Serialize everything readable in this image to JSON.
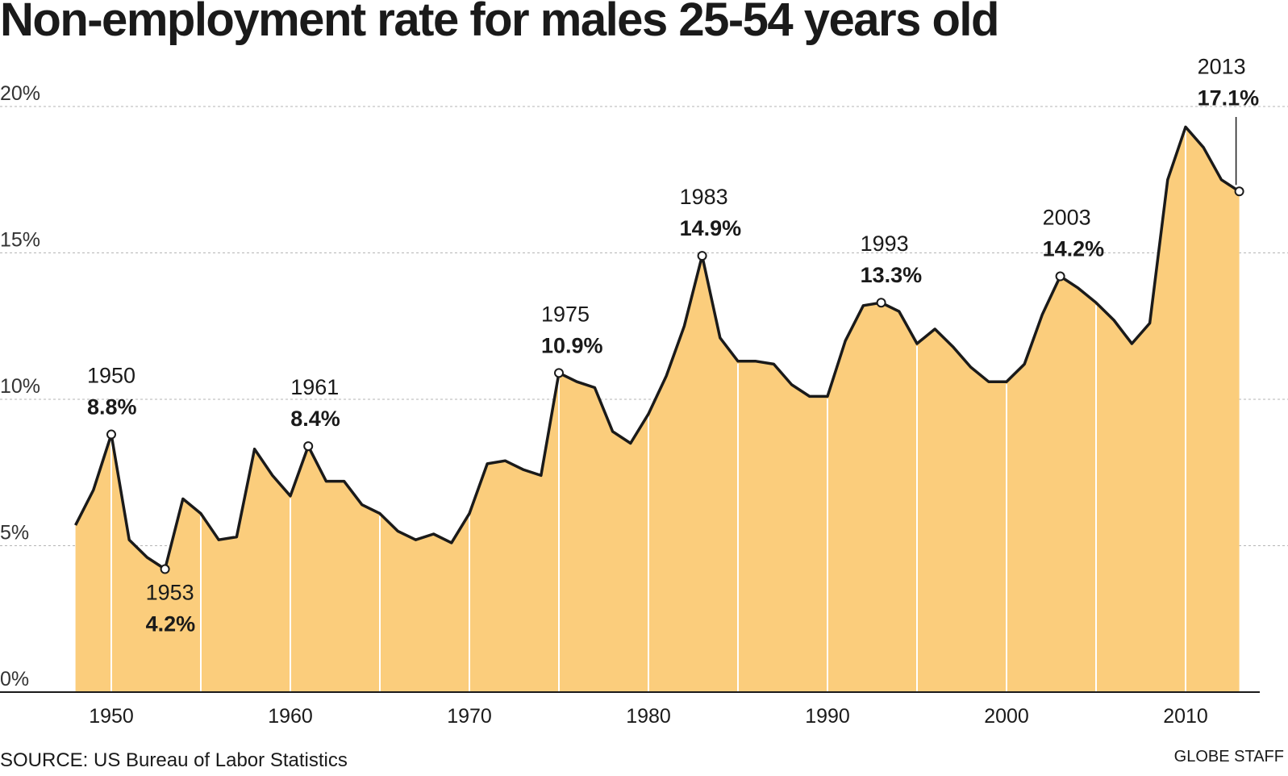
{
  "chart_data": {
    "type": "area",
    "title": "Non-employment rate for males 25-54 years old",
    "xlabel": "",
    "ylabel": "",
    "ylim": [
      0,
      20
    ],
    "y_ticks": [
      {
        "value": 0,
        "label": "0%"
      },
      {
        "value": 5,
        "label": "5%"
      },
      {
        "value": 10,
        "label": "10%"
      },
      {
        "value": 15,
        "label": "15%"
      },
      {
        "value": 20,
        "label": "20%"
      }
    ],
    "x_ticks": [
      {
        "value": 1950,
        "label": "1950"
      },
      {
        "value": 1960,
        "label": "1960"
      },
      {
        "value": 1970,
        "label": "1970"
      },
      {
        "value": 1980,
        "label": "1980"
      },
      {
        "value": 1990,
        "label": "1990"
      },
      {
        "value": 2000,
        "label": "2000"
      },
      {
        "value": 2010,
        "label": "2010"
      }
    ],
    "grid": true,
    "fill_color": "#fbcd7c",
    "line_color": "#1a1a1a",
    "x": [
      1948,
      1949,
      1950,
      1951,
      1952,
      1953,
      1954,
      1955,
      1956,
      1957,
      1958,
      1959,
      1960,
      1961,
      1962,
      1963,
      1964,
      1965,
      1966,
      1967,
      1968,
      1969,
      1970,
      1971,
      1972,
      1973,
      1974,
      1975,
      1976,
      1977,
      1978,
      1979,
      1980,
      1981,
      1982,
      1983,
      1984,
      1985,
      1986,
      1987,
      1988,
      1989,
      1990,
      1991,
      1992,
      1993,
      1994,
      1995,
      1996,
      1997,
      1998,
      1999,
      2000,
      2001,
      2002,
      2003,
      2004,
      2005,
      2006,
      2007,
      2008,
      2009,
      2010,
      2011,
      2012,
      2013
    ],
    "values": [
      5.7,
      6.9,
      8.8,
      5.2,
      4.6,
      4.2,
      6.6,
      6.1,
      5.2,
      5.3,
      8.3,
      7.4,
      6.7,
      8.4,
      7.2,
      7.2,
      6.4,
      6.1,
      5.5,
      5.2,
      5.4,
      5.1,
      6.1,
      7.8,
      7.9,
      7.6,
      7.4,
      10.9,
      10.6,
      10.4,
      8.9,
      8.5,
      9.5,
      10.8,
      12.5,
      14.9,
      12.1,
      11.3,
      11.3,
      11.2,
      10.5,
      10.1,
      10.1,
      12.0,
      13.2,
      13.3,
      13.0,
      11.9,
      12.4,
      11.8,
      11.1,
      10.6,
      10.6,
      11.2,
      12.9,
      14.2,
      13.8,
      13.3,
      12.7,
      11.9,
      12.6,
      17.5,
      19.3,
      18.6,
      17.5,
      17.1
    ]
  },
  "annotations": [
    {
      "year": 1950,
      "year_label": "1950",
      "value_label": "8.8%"
    },
    {
      "year": 1953,
      "year_label": "1953",
      "value_label": "4.2%"
    },
    {
      "year": 1961,
      "year_label": "1961",
      "value_label": "8.4%"
    },
    {
      "year": 1975,
      "year_label": "1975",
      "value_label": "10.9%"
    },
    {
      "year": 1983,
      "year_label": "1983",
      "value_label": "14.9%"
    },
    {
      "year": 1993,
      "year_label": "1993",
      "value_label": "13.3%"
    },
    {
      "year": 2003,
      "year_label": "2003",
      "value_label": "14.2%"
    },
    {
      "year": 2013,
      "year_label": "2013",
      "value_label": "17.1%"
    }
  ],
  "footer": {
    "source": "SOURCE: US Bureau of Labor Statistics",
    "credit": "GLOBE STAFF"
  }
}
